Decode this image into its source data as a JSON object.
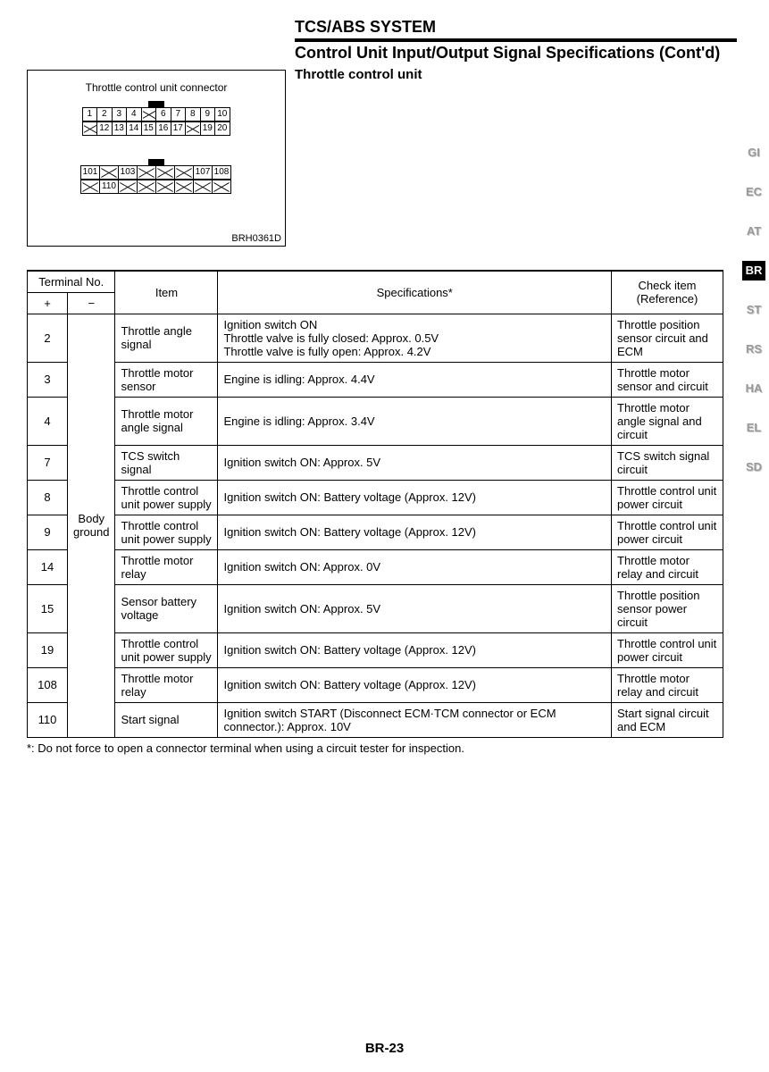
{
  "header": {
    "system": "TCS/ABS SYSTEM",
    "section": "Control Unit Input/Output Signal Specifications (Cont'd)",
    "subsection": "Throttle control unit"
  },
  "connector": {
    "title": "Throttle control unit connector",
    "ref": "BRH0361D",
    "block1_row1": [
      "1",
      "2",
      "3",
      "4",
      "X",
      "6",
      "7",
      "8",
      "9",
      "10"
    ],
    "block1_row2": [
      "X",
      "12",
      "13",
      "14",
      "15",
      "16",
      "17",
      "X",
      "19",
      "20"
    ],
    "block2_row1": [
      "101",
      "X",
      "103",
      "X",
      "X",
      "X",
      "107",
      "108"
    ],
    "block2_row2": [
      "X",
      "110",
      "X",
      "X",
      "X",
      "X",
      "X",
      "X"
    ]
  },
  "side_tabs": [
    "GI",
    "EC",
    "AT",
    "BR",
    "ST",
    "RS",
    "HA",
    "EL",
    "SD"
  ],
  "active_tab": "BR",
  "table": {
    "headers": {
      "terminal": "Terminal No.",
      "plus": "+",
      "minus": "−",
      "item": "Item",
      "spec": "Specifications*",
      "check": "Check item (Reference)"
    },
    "minus_shared": "Body ground",
    "rows": [
      {
        "plus": "2",
        "item": "Throttle angle signal",
        "spec": "Ignition switch ON\nThrottle valve is fully closed: Approx. 0.5V\nThrottle valve is fully open: Approx. 4.2V",
        "check": "Throttle position sensor circuit and ECM"
      },
      {
        "plus": "3",
        "item": "Throttle motor sensor",
        "spec": "Engine is idling: Approx. 4.4V",
        "check": "Throttle motor sensor and circuit"
      },
      {
        "plus": "4",
        "item": "Throttle motor angle signal",
        "spec": "Engine is idling: Approx. 3.4V",
        "check": "Throttle motor angle signal and circuit"
      },
      {
        "plus": "7",
        "item": "TCS switch signal",
        "spec": "Ignition switch ON: Approx. 5V",
        "check": "TCS switch signal circuit"
      },
      {
        "plus": "8",
        "item": "Throttle control unit power supply",
        "spec": "Ignition switch ON: Battery voltage (Approx. 12V)",
        "check": "Throttle control unit power circuit"
      },
      {
        "plus": "9",
        "item": "Throttle control unit power supply",
        "spec": "Ignition switch ON: Battery voltage (Approx. 12V)",
        "check": "Throttle control unit power circuit"
      },
      {
        "plus": "14",
        "item": "Throttle motor relay",
        "spec": "Ignition switch ON: Approx. 0V",
        "check": "Throttle motor relay and circuit"
      },
      {
        "plus": "15",
        "item": "Sensor battery voltage",
        "spec": "Ignition switch ON: Approx. 5V",
        "check": "Throttle position sensor power circuit"
      },
      {
        "plus": "19",
        "item": "Throttle control unit power supply",
        "spec": "Ignition switch ON: Battery voltage (Approx. 12V)",
        "check": "Throttle control unit power circuit"
      },
      {
        "plus": "108",
        "item": "Throttle motor relay",
        "spec": "Ignition switch ON: Battery voltage (Approx. 12V)",
        "check": "Throttle motor relay and circuit"
      },
      {
        "plus": "110",
        "item": "Start signal",
        "spec": "Ignition switch START (Disconnect ECM·TCM connector or ECM connector.): Approx. 10V",
        "check": "Start signal circuit and ECM"
      }
    ]
  },
  "footnote": "*: Do not force to open a connector terminal when using a circuit tester for inspection.",
  "page_number": "BR-23"
}
